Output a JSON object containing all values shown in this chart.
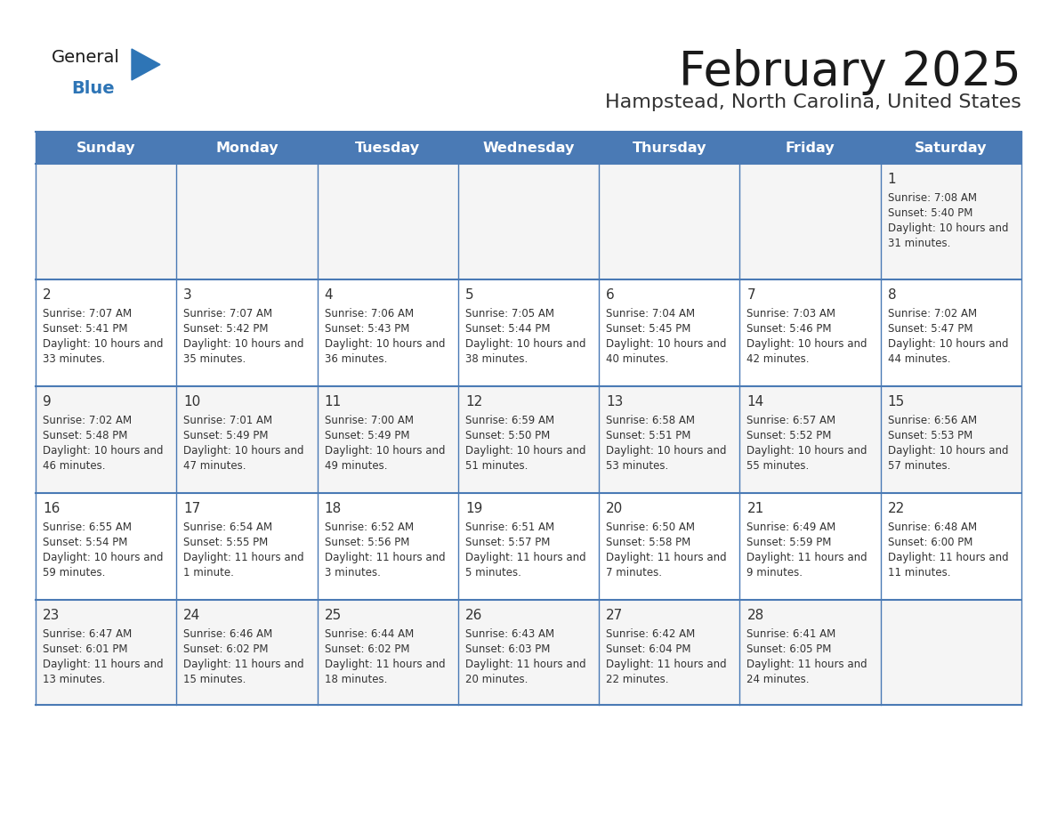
{
  "title": "February 2025",
  "subtitle": "Hampstead, North Carolina, United States",
  "days_of_week": [
    "Sunday",
    "Monday",
    "Tuesday",
    "Wednesday",
    "Thursday",
    "Friday",
    "Saturday"
  ],
  "header_bg": "#4a7ab5",
  "header_text": "#ffffff",
  "row_bg_1": "#f5f5f5",
  "row_bg_2": "#ffffff",
  "border_color": "#4a7ab5",
  "cell_border_color": "#c8c8c8",
  "text_color": "#333333",
  "day_number_color": "#333333",
  "title_color": "#1a1a1a",
  "subtitle_color": "#333333",
  "logo_general_color": "#1a1a1a",
  "logo_blue_color": "#2e75b6",
  "calendar_data": [
    [
      null,
      null,
      null,
      null,
      null,
      null,
      {
        "day": 1,
        "sunrise": "7:08 AM",
        "sunset": "5:40 PM",
        "daylight": "10 hours and 31 minutes."
      }
    ],
    [
      {
        "day": 2,
        "sunrise": "7:07 AM",
        "sunset": "5:41 PM",
        "daylight": "10 hours and 33 minutes."
      },
      {
        "day": 3,
        "sunrise": "7:07 AM",
        "sunset": "5:42 PM",
        "daylight": "10 hours and 35 minutes."
      },
      {
        "day": 4,
        "sunrise": "7:06 AM",
        "sunset": "5:43 PM",
        "daylight": "10 hours and 36 minutes."
      },
      {
        "day": 5,
        "sunrise": "7:05 AM",
        "sunset": "5:44 PM",
        "daylight": "10 hours and 38 minutes."
      },
      {
        "day": 6,
        "sunrise": "7:04 AM",
        "sunset": "5:45 PM",
        "daylight": "10 hours and 40 minutes."
      },
      {
        "day": 7,
        "sunrise": "7:03 AM",
        "sunset": "5:46 PM",
        "daylight": "10 hours and 42 minutes."
      },
      {
        "day": 8,
        "sunrise": "7:02 AM",
        "sunset": "5:47 PM",
        "daylight": "10 hours and 44 minutes."
      }
    ],
    [
      {
        "day": 9,
        "sunrise": "7:02 AM",
        "sunset": "5:48 PM",
        "daylight": "10 hours and 46 minutes."
      },
      {
        "day": 10,
        "sunrise": "7:01 AM",
        "sunset": "5:49 PM",
        "daylight": "10 hours and 47 minutes."
      },
      {
        "day": 11,
        "sunrise": "7:00 AM",
        "sunset": "5:49 PM",
        "daylight": "10 hours and 49 minutes."
      },
      {
        "day": 12,
        "sunrise": "6:59 AM",
        "sunset": "5:50 PM",
        "daylight": "10 hours and 51 minutes."
      },
      {
        "day": 13,
        "sunrise": "6:58 AM",
        "sunset": "5:51 PM",
        "daylight": "10 hours and 53 minutes."
      },
      {
        "day": 14,
        "sunrise": "6:57 AM",
        "sunset": "5:52 PM",
        "daylight": "10 hours and 55 minutes."
      },
      {
        "day": 15,
        "sunrise": "6:56 AM",
        "sunset": "5:53 PM",
        "daylight": "10 hours and 57 minutes."
      }
    ],
    [
      {
        "day": 16,
        "sunrise": "6:55 AM",
        "sunset": "5:54 PM",
        "daylight": "10 hours and 59 minutes."
      },
      {
        "day": 17,
        "sunrise": "6:54 AM",
        "sunset": "5:55 PM",
        "daylight": "11 hours and 1 minute."
      },
      {
        "day": 18,
        "sunrise": "6:52 AM",
        "sunset": "5:56 PM",
        "daylight": "11 hours and 3 minutes."
      },
      {
        "day": 19,
        "sunrise": "6:51 AM",
        "sunset": "5:57 PM",
        "daylight": "11 hours and 5 minutes."
      },
      {
        "day": 20,
        "sunrise": "6:50 AM",
        "sunset": "5:58 PM",
        "daylight": "11 hours and 7 minutes."
      },
      {
        "day": 21,
        "sunrise": "6:49 AM",
        "sunset": "5:59 PM",
        "daylight": "11 hours and 9 minutes."
      },
      {
        "day": 22,
        "sunrise": "6:48 AM",
        "sunset": "6:00 PM",
        "daylight": "11 hours and 11 minutes."
      }
    ],
    [
      {
        "day": 23,
        "sunrise": "6:47 AM",
        "sunset": "6:01 PM",
        "daylight": "11 hours and 13 minutes."
      },
      {
        "day": 24,
        "sunrise": "6:46 AM",
        "sunset": "6:02 PM",
        "daylight": "11 hours and 15 minutes."
      },
      {
        "day": 25,
        "sunrise": "6:44 AM",
        "sunset": "6:02 PM",
        "daylight": "11 hours and 18 minutes."
      },
      {
        "day": 26,
        "sunrise": "6:43 AM",
        "sunset": "6:03 PM",
        "daylight": "11 hours and 20 minutes."
      },
      {
        "day": 27,
        "sunrise": "6:42 AM",
        "sunset": "6:04 PM",
        "daylight": "11 hours and 22 minutes."
      },
      {
        "day": 28,
        "sunrise": "6:41 AM",
        "sunset": "6:05 PM",
        "daylight": "11 hours and 24 minutes."
      },
      null
    ]
  ]
}
